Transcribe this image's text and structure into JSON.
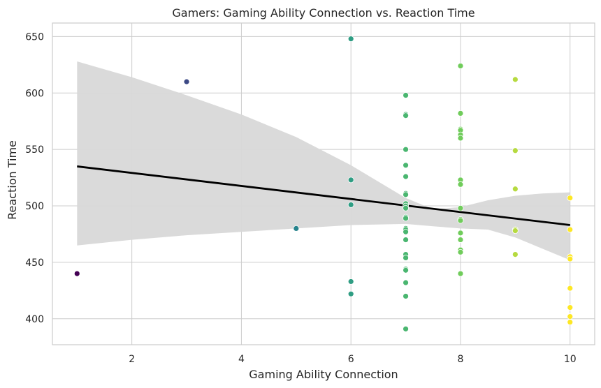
{
  "chart_data": {
    "type": "scatter",
    "title": "Gamers: Gaming Ability Connection vs. Reaction Time",
    "xlabel": "Gaming Ability Connection",
    "ylabel": "Reaction Time",
    "xlim": [
      0.55,
      10.45
    ],
    "ylim": [
      377,
      662
    ],
    "xticks": [
      2,
      4,
      6,
      8,
      10
    ],
    "yticks": [
      400,
      450,
      500,
      550,
      600,
      650
    ],
    "grid": true,
    "legend": "none",
    "colormap": "viridis",
    "points": [
      {
        "x": 1,
        "y": 440
      },
      {
        "x": 3,
        "y": 610
      },
      {
        "x": 5,
        "y": 480
      },
      {
        "x": 6,
        "y": 648
      },
      {
        "x": 6,
        "y": 523
      },
      {
        "x": 6,
        "y": 501
      },
      {
        "x": 6,
        "y": 433
      },
      {
        "x": 6,
        "y": 422
      },
      {
        "x": 7,
        "y": 598
      },
      {
        "x": 7,
        "y": 581
      },
      {
        "x": 7,
        "y": 580
      },
      {
        "x": 7,
        "y": 550
      },
      {
        "x": 7,
        "y": 536
      },
      {
        "x": 7,
        "y": 526
      },
      {
        "x": 7,
        "y": 511
      },
      {
        "x": 7,
        "y": 510
      },
      {
        "x": 7,
        "y": 502
      },
      {
        "x": 7,
        "y": 500
      },
      {
        "x": 7,
        "y": 498
      },
      {
        "x": 7,
        "y": 490
      },
      {
        "x": 7,
        "y": 489
      },
      {
        "x": 7,
        "y": 480
      },
      {
        "x": 7,
        "y": 479
      },
      {
        "x": 7,
        "y": 477
      },
      {
        "x": 7,
        "y": 470
      },
      {
        "x": 7,
        "y": 457
      },
      {
        "x": 7,
        "y": 454
      },
      {
        "x": 7,
        "y": 444
      },
      {
        "x": 7,
        "y": 443
      },
      {
        "x": 7,
        "y": 432
      },
      {
        "x": 7,
        "y": 420
      },
      {
        "x": 7,
        "y": 391
      },
      {
        "x": 8,
        "y": 624
      },
      {
        "x": 8,
        "y": 582
      },
      {
        "x": 8,
        "y": 568
      },
      {
        "x": 8,
        "y": 567
      },
      {
        "x": 8,
        "y": 563
      },
      {
        "x": 8,
        "y": 560
      },
      {
        "x": 8,
        "y": 523
      },
      {
        "x": 8,
        "y": 519
      },
      {
        "x": 8,
        "y": 498
      },
      {
        "x": 8,
        "y": 488
      },
      {
        "x": 8,
        "y": 487
      },
      {
        "x": 8,
        "y": 476
      },
      {
        "x": 8,
        "y": 470
      },
      {
        "x": 8,
        "y": 461
      },
      {
        "x": 8,
        "y": 459
      },
      {
        "x": 8,
        "y": 440
      },
      {
        "x": 9,
        "y": 612
      },
      {
        "x": 9,
        "y": 549
      },
      {
        "x": 9,
        "y": 515
      },
      {
        "x": 9,
        "y": 479
      },
      {
        "x": 9,
        "y": 478
      },
      {
        "x": 9,
        "y": 457
      },
      {
        "x": 10,
        "y": 507
      },
      {
        "x": 10,
        "y": 479
      },
      {
        "x": 10,
        "y": 455
      },
      {
        "x": 10,
        "y": 453
      },
      {
        "x": 10,
        "y": 427
      },
      {
        "x": 10,
        "y": 410
      },
      {
        "x": 10,
        "y": 402
      },
      {
        "x": 10,
        "y": 397
      }
    ],
    "regression": {
      "x": [
        1,
        10
      ],
      "y": [
        535,
        483
      ],
      "color": "#000000"
    },
    "confidence_band": {
      "x": [
        1,
        2,
        3,
        4,
        5,
        6,
        7,
        7.5,
        8,
        8.5,
        9,
        9.5,
        10
      ],
      "upper": [
        628,
        614,
        598,
        581,
        561,
        536,
        507,
        497,
        499,
        505,
        509,
        511,
        512
      ],
      "lower": [
        465,
        470,
        474,
        477,
        480,
        483,
        484,
        482,
        480,
        479,
        472,
        462,
        452
      ],
      "color": "#d8d8d8"
    }
  }
}
